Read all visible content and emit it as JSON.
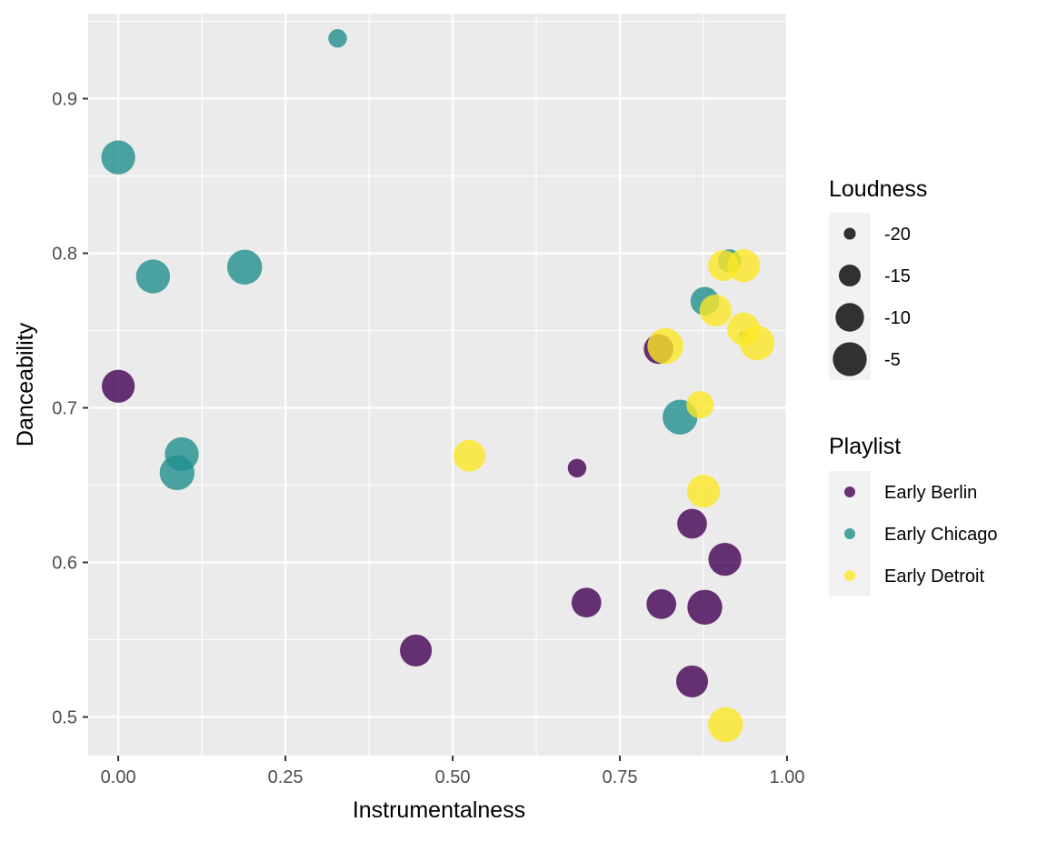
{
  "chart_data": {
    "type": "scatter",
    "xlabel": "Instrumentalness",
    "ylabel": "Danceability",
    "xlim": [
      -0.045,
      1.0
    ],
    "ylim": [
      0.475,
      0.955
    ],
    "x_ticks": [
      0.0,
      0.25,
      0.5,
      0.75,
      1.0
    ],
    "x_tick_labels": [
      "0.00",
      "0.25",
      "0.50",
      "0.75",
      "1.00"
    ],
    "y_ticks": [
      0.5,
      0.6,
      0.7,
      0.8,
      0.9
    ],
    "y_tick_labels": [
      "0.5",
      "0.6",
      "0.7",
      "0.8",
      "0.9"
    ],
    "grid": true,
    "panel_background": "#ebebeb",
    "grid_color": "#ffffff",
    "point_opacity": 0.8,
    "size_range": [
      -21.5,
      -2.5
    ],
    "legends": {
      "size": {
        "title": "Loudness",
        "values": [
          -20,
          -15,
          -10,
          -5
        ],
        "labels": [
          "-20",
          "-15",
          "-10",
          "-5"
        ],
        "placement": "right"
      },
      "color": {
        "title": "Playlist",
        "placement": "right"
      }
    },
    "series": [
      {
        "name": "Early Berlin",
        "color": "#440154",
        "points": [
          {
            "x": 0.0,
            "y": 0.714,
            "size": -6
          },
          {
            "x": 0.445,
            "y": 0.543,
            "size": -7
          },
          {
            "x": 0.686,
            "y": 0.661,
            "size": -17
          },
          {
            "x": 0.7,
            "y": 0.574,
            "size": -9
          },
          {
            "x": 0.808,
            "y": 0.738,
            "size": -9
          },
          {
            "x": 0.812,
            "y": 0.573,
            "size": -9
          },
          {
            "x": 0.858,
            "y": 0.625,
            "size": -9
          },
          {
            "x": 0.858,
            "y": 0.523,
            "size": -7
          },
          {
            "x": 0.877,
            "y": 0.571,
            "size": -4
          },
          {
            "x": 0.907,
            "y": 0.602,
            "size": -6
          }
        ]
      },
      {
        "name": "Early Chicago",
        "color": "#21908c",
        "points": [
          {
            "x": 0.0,
            "y": 0.862,
            "size": -5
          },
          {
            "x": 0.052,
            "y": 0.785,
            "size": -5
          },
          {
            "x": 0.088,
            "y": 0.658,
            "size": -4
          },
          {
            "x": 0.095,
            "y": 0.67,
            "size": -5
          },
          {
            "x": 0.189,
            "y": 0.791,
            "size": -4
          },
          {
            "x": 0.328,
            "y": 0.939,
            "size": -17
          },
          {
            "x": 0.84,
            "y": 0.694,
            "size": -4
          },
          {
            "x": 0.877,
            "y": 0.769,
            "size": -10
          },
          {
            "x": 0.914,
            "y": 0.795,
            "size": -14
          },
          {
            "x": 0.935,
            "y": 0.747,
            "size": -21
          }
        ]
      },
      {
        "name": "Early Detroit",
        "color": "#fde725",
        "points": [
          {
            "x": 0.525,
            "y": 0.669,
            "size": -7
          },
          {
            "x": 0.818,
            "y": 0.74,
            "size": -3
          },
          {
            "x": 0.87,
            "y": 0.702,
            "size": -11
          },
          {
            "x": 0.875,
            "y": 0.646,
            "size": -6
          },
          {
            "x": 0.893,
            "y": 0.763,
            "size": -7
          },
          {
            "x": 0.905,
            "y": 0.792,
            "size": -8
          },
          {
            "x": 0.908,
            "y": 0.495,
            "size": -4
          },
          {
            "x": 0.935,
            "y": 0.792,
            "size": -6
          },
          {
            "x": 0.935,
            "y": 0.751,
            "size": -6
          },
          {
            "x": 0.955,
            "y": 0.742,
            "size": -4
          }
        ]
      }
    ]
  }
}
